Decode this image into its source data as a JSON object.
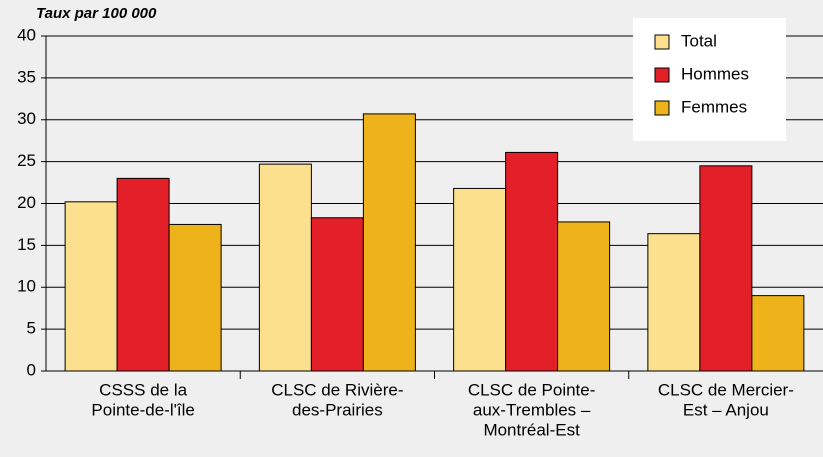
{
  "chart_data": {
    "type": "bar",
    "y_label": "Taux par 100 000",
    "categories": [
      [
        "CSSS de la",
        "Pointe-de-l'île"
      ],
      [
        "CLSC de Rivière-",
        "des-Prairies"
      ],
      [
        "CLSC de Pointe-",
        "aux-Trembles –",
        "Montréal-Est"
      ],
      [
        "CLSC de Mercier-",
        "Est – Anjou"
      ]
    ],
    "series": [
      {
        "name": "Total",
        "color": "#fde08e",
        "values": [
          20.2,
          24.7,
          21.8,
          16.4
        ]
      },
      {
        "name": "Hommes",
        "color": "#e32028",
        "values": [
          23.0,
          18.3,
          26.1,
          24.5
        ]
      },
      {
        "name": "Femmes",
        "color": "#eeb21a",
        "values": [
          17.5,
          30.7,
          17.8,
          9.0
        ]
      }
    ],
    "ylim": [
      0,
      40
    ],
    "yticks": [
      0,
      5,
      10,
      15,
      20,
      25,
      30,
      35,
      40
    ],
    "grid": true,
    "legend": "upper right"
  }
}
